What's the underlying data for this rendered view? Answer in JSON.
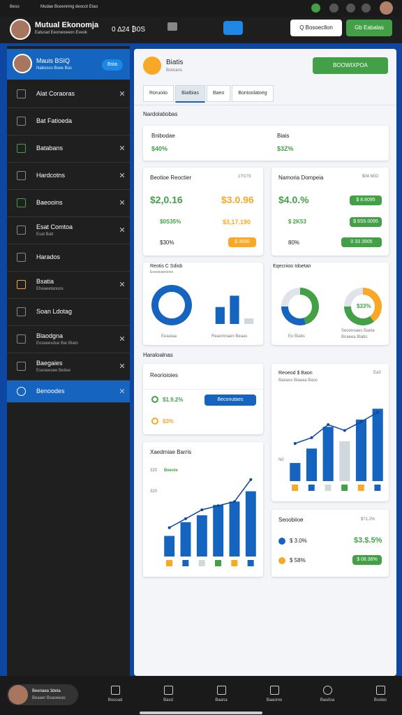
{
  "status": {
    "time": "Beso",
    "title": "Mudae Bceenning deocot Etao"
  },
  "header": {
    "title": "Mutual Ekonomja",
    "subtitle": "Eaturad Eeoneoeeon Eveok",
    "stats": "0 ∆24 ₿0S",
    "search": "Q Bosoecllon",
    "action": "Gb Eabalas"
  },
  "sidebar": {
    "profile": {
      "name": "Mauis BSIQ",
      "sub": "Nabosco Bsee Bos",
      "badge": "Bsta"
    },
    "items": [
      {
        "label": "Alat Coraoras"
      },
      {
        "label": "Bat Fatioeda"
      },
      {
        "label": "Batabans"
      },
      {
        "label": "Hardcotns"
      },
      {
        "label": "Baeooins"
      },
      {
        "label": "Esat Comtoa",
        "sub": "Esat Batt"
      },
      {
        "label": "Harados"
      },
      {
        "label": "Bsatia",
        "sub": "Eheaeetanoos"
      },
      {
        "label": "Soan Ldotag"
      },
      {
        "label": "Blaodgna",
        "sub": "Eoseeesdue Bar Blato"
      },
      {
        "label": "Baegaies",
        "sub": "Eseoeeoee Betiee"
      },
      {
        "label": "Benoodes"
      }
    ],
    "active": 11
  },
  "main": {
    "title": "Biatis",
    "subtitle": "Bstioans",
    "button": "BOOWIXPOA",
    "tabs": [
      "Roruoiio",
      "Biatbias",
      "Baeo",
      "Bontoolatoeg"
    ],
    "active_tab": 1,
    "section1": "Nardolatiobas",
    "section2": "Haraloalnas"
  },
  "cards": {
    "summary": {
      "left_label": "Bnibodae",
      "left_value": "$40%",
      "right_label": "Biais",
      "right_value": "$3Z%"
    },
    "left": {
      "title": "Beotioe Reoctier",
      "date": "1?/1?3",
      "big1": "$2,0.16",
      "big2": "$3.0.96",
      "row1a": "$0S35%",
      "row1b": "$3,17.190",
      "row2a": "$30%",
      "row2b": "$ 3930"
    },
    "right": {
      "title": "Namoria Dompeia",
      "date": "$04 6ED",
      "big": "$4.0.%",
      "btn1": "$ 8.8095",
      "row1": "$ 2K53",
      "btn2": "$ 9S5.0095",
      "row2": "80%",
      "btn3": "0 33 3905"
    },
    "chart_left": {
      "title": "Reotis C Sdisb",
      "sub": "Eoeeioaeeioee",
      "cap1": "Eeauiaa",
      "cap2": "Reaomnaen Beaas"
    },
    "chart_right": {
      "title": "Eqecnioo Idoetan",
      "cap1": "Eo Biabs",
      "cap2": "Seoonoaes Baeta",
      "cap3": "Bnaeea Blabs",
      "center": "$33%"
    },
    "rep": {
      "title": "Reorioioies",
      "row1": "$1.9.2%",
      "btn": "Beconutaes",
      "row2": "$3%"
    },
    "record": {
      "title": "Reoeod $ Baon",
      "sub": "Baeaos Biaeaa Baos",
      "date": "Ea3",
      "axis": "N0"
    },
    "bars": {
      "title": "Xaedmiae Barris",
      "sub": "Beeoie",
      "axis1": "320",
      "axis2": "320"
    },
    "sec": {
      "title": "Seoobiioe",
      "date": "$?1.2%",
      "row1": "$ 3.0%",
      "row1b": "$3.$.5%",
      "row2": "$ 58%",
      "btn": "$ 08.36%"
    }
  },
  "charts": {
    "donut_a": {
      "values": [
        100
      ],
      "colors": [
        "#1565c0"
      ]
    },
    "bars_a": {
      "values": [
        45,
        75,
        15
      ],
      "ylim": [
        0,
        100
      ],
      "colors": [
        "#1565c0",
        "#1565c0",
        "#cfd8dc"
      ]
    },
    "donut_b": {
      "values": [
        45,
        30,
        25
      ],
      "colors": [
        "#43a047",
        "#1565c0",
        "#dfe4ea"
      ]
    },
    "donut_c": {
      "values": [
        40,
        35,
        25
      ],
      "colors": [
        "#f9a825",
        "#43a047",
        "#dfe4ea"
      ]
    },
    "bars_b": {
      "values": [
        25,
        45,
        75,
        55,
        85,
        100
      ],
      "line": [
        52,
        60,
        78,
        70,
        82,
        95
      ],
      "ylim": [
        0,
        110
      ],
      "colors": [
        "#1565c0",
        "#1565c0",
        "#1565c0",
        "#cfd8dc",
        "#1565c0",
        "#1565c0"
      ]
    },
    "bars_c": {
      "values": [
        30,
        50,
        60,
        75,
        80,
        95
      ],
      "line": [
        42,
        55,
        68,
        74,
        80,
        112
      ],
      "ylim": [
        0,
        120
      ],
      "colors": [
        "#1565c0",
        "#1565c0",
        "#1565c0",
        "#1565c0",
        "#1565c0",
        "#1565c0"
      ]
    }
  },
  "bottom": {
    "name": "Beenaea 3deta",
    "sub": "Beaaer Bsaoeeas",
    "nav": [
      "Bosoad",
      "Basd",
      "Baana",
      "Baaomo",
      "Basdoa",
      "Bsotes"
    ]
  }
}
